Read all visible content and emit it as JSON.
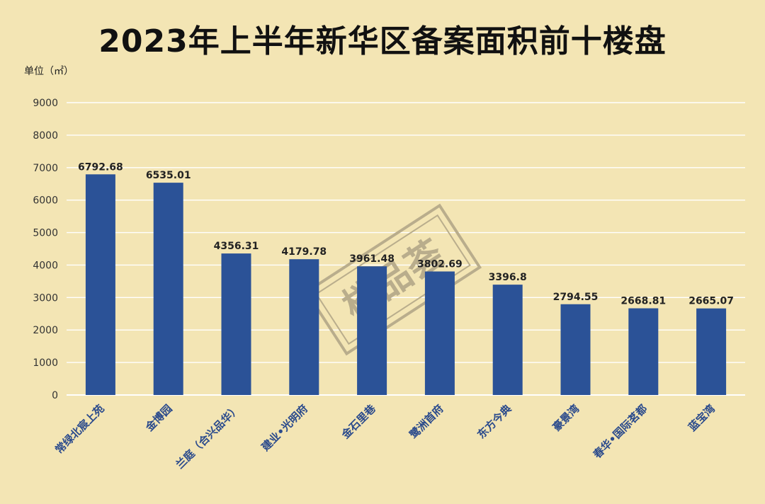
{
  "chart_data": {
    "type": "bar",
    "title": "2023年上半年新华区备案面积前十楼盘",
    "ylabel": "单位（㎡）",
    "xlabel": "",
    "ylim": [
      0,
      9000
    ],
    "yticks": [
      0,
      1000,
      2000,
      3000,
      4000,
      5000,
      6000,
      7000,
      8000,
      9000
    ],
    "categories": [
      "常绿北宸上苑",
      "金博园",
      "兰庭（合兴品华）",
      "建业•光明府",
      "金石里巷",
      "鹭洲首府",
      "东方今典",
      "豪景湾",
      "春华•国际茗都",
      "蓝宝湾"
    ],
    "values": [
      6792.68,
      6535.01,
      4356.31,
      4179.78,
      3961.48,
      3802.69,
      3396.8,
      2794.55,
      2668.81,
      2665.07
    ],
    "value_labels": [
      "6792.68",
      "6535.01",
      "4356.31",
      "4179.78",
      "3961.48",
      "3802.69",
      "3396.8",
      "2794.55",
      "2668.81",
      "2665.07"
    ],
    "grid": true,
    "legend": "none"
  },
  "watermark": {
    "text": "楼品荟"
  },
  "colors": {
    "background": "#f3e5b4",
    "bar": "#2b5297",
    "grid": "#ffffff",
    "category_text": "#2a4a8c"
  }
}
